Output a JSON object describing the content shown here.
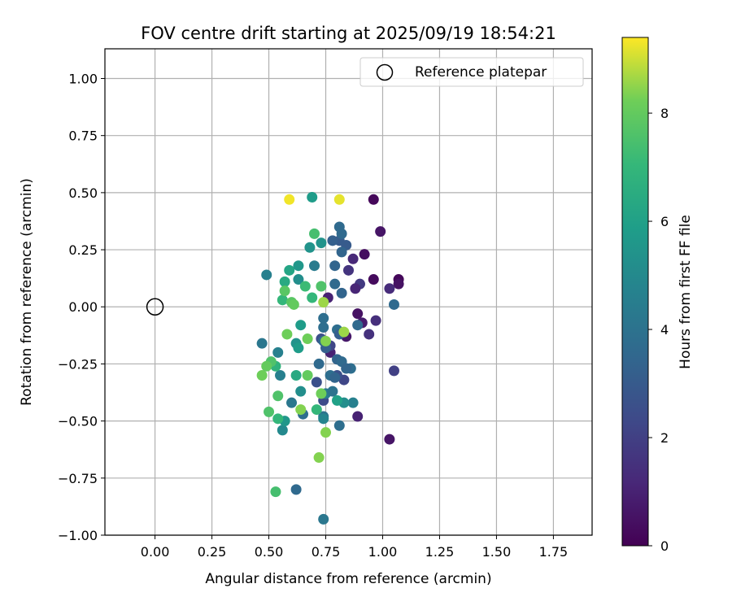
{
  "chart_data": {
    "type": "scatter",
    "title": "FOV centre drift starting at 2025/09/19 18:54:21",
    "xlabel": "Angular distance from reference (arcmin)",
    "ylabel": "Rotation from reference (arcmin)",
    "xlim": [
      -0.22,
      1.92
    ],
    "ylim": [
      -1.0,
      1.13
    ],
    "xticks": [
      0.0,
      0.25,
      0.5,
      0.75,
      1.0,
      1.25,
      1.5,
      1.75
    ],
    "xtick_labels": [
      "0.00",
      "0.25",
      "0.50",
      "0.75",
      "1.00",
      "1.25",
      "1.50",
      "1.75"
    ],
    "yticks": [
      -1.0,
      -0.75,
      -0.5,
      -0.25,
      0.0,
      0.25,
      0.5,
      0.75,
      1.0
    ],
    "ytick_labels": [
      "−1.00",
      "−0.75",
      "−0.50",
      "−0.25",
      "0.00",
      "0.25",
      "0.50",
      "0.75",
      "1.00"
    ],
    "grid": true,
    "legend": {
      "position": "top-right",
      "entries": [
        "Reference platepar"
      ]
    },
    "reference_point": {
      "x": 0.0,
      "y": 0.0,
      "label": "Reference platepar"
    },
    "colorbar": {
      "label": "Hours from first FF file",
      "colormap": "viridis",
      "range": [
        0,
        9.4
      ],
      "ticks": [
        0,
        2,
        4,
        6,
        8
      ],
      "tick_labels": [
        "0",
        "2",
        "4",
        "6",
        "8"
      ]
    },
    "points": [
      {
        "x": 0.96,
        "y": 0.47,
        "h": 0.2
      },
      {
        "x": 0.99,
        "y": 0.33,
        "h": 0.6
      },
      {
        "x": 0.92,
        "y": 0.23,
        "h": 0.4
      },
      {
        "x": 0.87,
        "y": 0.21,
        "h": 1.2
      },
      {
        "x": 0.85,
        "y": 0.16,
        "h": 1.6
      },
      {
        "x": 0.96,
        "y": 0.12,
        "h": 0.3
      },
      {
        "x": 0.9,
        "y": 0.1,
        "h": 1.8
      },
      {
        "x": 0.88,
        "y": 0.08,
        "h": 1.1
      },
      {
        "x": 1.07,
        "y": 0.12,
        "h": 0.2
      },
      {
        "x": 1.07,
        "y": 0.1,
        "h": 0.5
      },
      {
        "x": 1.03,
        "y": 0.08,
        "h": 1.3
      },
      {
        "x": 0.76,
        "y": 0.04,
        "h": 1.0
      },
      {
        "x": 0.89,
        "y": -0.03,
        "h": 0.5
      },
      {
        "x": 0.91,
        "y": -0.07,
        "h": 0.8
      },
      {
        "x": 0.97,
        "y": -0.06,
        "h": 1.4
      },
      {
        "x": 0.94,
        "y": -0.12,
        "h": 1.5
      },
      {
        "x": 0.84,
        "y": -0.13,
        "h": 0.7
      },
      {
        "x": 0.77,
        "y": -0.2,
        "h": 1.0
      },
      {
        "x": 1.03,
        "y": -0.58,
        "h": 0.6
      },
      {
        "x": 1.05,
        "y": -0.28,
        "h": 2.0
      },
      {
        "x": 0.89,
        "y": -0.48,
        "h": 1.0
      },
      {
        "x": 0.83,
        "y": -0.32,
        "h": 2.2
      },
      {
        "x": 0.74,
        "y": -0.41,
        "h": 2.4
      },
      {
        "x": 0.77,
        "y": -0.17,
        "h": 2.2
      },
      {
        "x": 0.73,
        "y": -0.14,
        "h": 2.6
      },
      {
        "x": 0.71,
        "y": -0.33,
        "h": 2.6
      },
      {
        "x": 0.8,
        "y": -0.3,
        "h": 2.6
      },
      {
        "x": 0.81,
        "y": 0.29,
        "h": 3.0
      },
      {
        "x": 0.78,
        "y": 0.29,
        "h": 3.2
      },
      {
        "x": 0.84,
        "y": 0.27,
        "h": 3.0
      },
      {
        "x": 0.81,
        "y": 0.35,
        "h": 3.6
      },
      {
        "x": 0.82,
        "y": 0.32,
        "h": 3.6
      },
      {
        "x": 0.82,
        "y": 0.24,
        "h": 3.4
      },
      {
        "x": 0.79,
        "y": 0.18,
        "h": 3.4
      },
      {
        "x": 0.79,
        "y": 0.1,
        "h": 3.6
      },
      {
        "x": 0.82,
        "y": 0.06,
        "h": 3.4
      },
      {
        "x": 1.05,
        "y": 0.01,
        "h": 3.6
      },
      {
        "x": 0.89,
        "y": -0.08,
        "h": 3.6
      },
      {
        "x": 0.8,
        "y": -0.1,
        "h": 3.8
      },
      {
        "x": 0.81,
        "y": -0.12,
        "h": 3.2
      },
      {
        "x": 0.74,
        "y": -0.05,
        "h": 3.8
      },
      {
        "x": 0.74,
        "y": -0.09,
        "h": 3.8
      },
      {
        "x": 0.74,
        "y": -0.15,
        "h": 3.6
      },
      {
        "x": 0.75,
        "y": -0.18,
        "h": 3.2
      },
      {
        "x": 0.8,
        "y": -0.23,
        "h": 3.4
      },
      {
        "x": 0.82,
        "y": -0.24,
        "h": 3.6
      },
      {
        "x": 0.86,
        "y": -0.27,
        "h": 3.8
      },
      {
        "x": 0.77,
        "y": -0.3,
        "h": 3.8
      },
      {
        "x": 0.72,
        "y": -0.25,
        "h": 3.6
      },
      {
        "x": 0.84,
        "y": -0.27,
        "h": 3.4
      },
      {
        "x": 0.79,
        "y": -0.31,
        "h": 3.4
      },
      {
        "x": 0.75,
        "y": -0.38,
        "h": 4.4
      },
      {
        "x": 0.78,
        "y": -0.37,
        "h": 4.0
      },
      {
        "x": 0.74,
        "y": -0.48,
        "h": 4.0
      },
      {
        "x": 0.81,
        "y": -0.52,
        "h": 3.8
      },
      {
        "x": 0.65,
        "y": -0.47,
        "h": 3.8
      },
      {
        "x": 0.62,
        "y": -0.8,
        "h": 3.6
      },
      {
        "x": 0.74,
        "y": -0.93,
        "h": 4.2
      },
      {
        "x": 0.7,
        "y": 0.18,
        "h": 4.4
      },
      {
        "x": 0.49,
        "y": 0.14,
        "h": 4.6
      },
      {
        "x": 0.47,
        "y": -0.16,
        "h": 4.2
      },
      {
        "x": 0.54,
        "y": -0.2,
        "h": 4.6
      },
      {
        "x": 0.55,
        "y": -0.3,
        "h": 4.6
      },
      {
        "x": 0.6,
        "y": -0.42,
        "h": 4.2
      },
      {
        "x": 0.87,
        "y": -0.42,
        "h": 4.6
      },
      {
        "x": 0.83,
        "y": -0.42,
        "h": 5.2
      },
      {
        "x": 0.74,
        "y": -0.49,
        "h": 4.8
      },
      {
        "x": 0.56,
        "y": -0.54,
        "h": 5.0
      },
      {
        "x": 0.64,
        "y": -0.37,
        "h": 5.2
      },
      {
        "x": 0.63,
        "y": 0.12,
        "h": 5.2
      },
      {
        "x": 0.68,
        "y": 0.26,
        "h": 5.4
      },
      {
        "x": 0.73,
        "y": 0.28,
        "h": 5.4
      },
      {
        "x": 0.63,
        "y": 0.18,
        "h": 5.6
      },
      {
        "x": 0.69,
        "y": 0.48,
        "h": 5.8
      },
      {
        "x": 0.62,
        "y": -0.16,
        "h": 5.4
      },
      {
        "x": 0.57,
        "y": -0.5,
        "h": 5.6
      },
      {
        "x": 0.64,
        "y": -0.08,
        "h": 5.8
      },
      {
        "x": 0.59,
        "y": 0.16,
        "h": 6.2
      },
      {
        "x": 0.57,
        "y": 0.11,
        "h": 6.4
      },
      {
        "x": 0.63,
        "y": -0.18,
        "h": 5.8
      },
      {
        "x": 0.62,
        "y": -0.3,
        "h": 6.4
      },
      {
        "x": 0.8,
        "y": -0.41,
        "h": 6.0
      },
      {
        "x": 0.53,
        "y": -0.26,
        "h": 6.8
      },
      {
        "x": 0.56,
        "y": 0.03,
        "h": 7.0
      },
      {
        "x": 0.54,
        "y": -0.49,
        "h": 7.0
      },
      {
        "x": 0.69,
        "y": 0.04,
        "h": 7.0
      },
      {
        "x": 0.71,
        "y": -0.45,
        "h": 7.0
      },
      {
        "x": 0.66,
        "y": 0.09,
        "h": 7.2
      },
      {
        "x": 0.7,
        "y": 0.32,
        "h": 7.4
      },
      {
        "x": 0.53,
        "y": -0.81,
        "h": 7.4
      },
      {
        "x": 0.51,
        "y": -0.24,
        "h": 7.6
      },
      {
        "x": 0.5,
        "y": -0.46,
        "h": 7.6
      },
      {
        "x": 0.73,
        "y": 0.09,
        "h": 7.6
      },
      {
        "x": 0.54,
        "y": -0.39,
        "h": 7.6
      },
      {
        "x": 0.57,
        "y": 0.07,
        "h": 7.8
      },
      {
        "x": 0.6,
        "y": 0.02,
        "h": 7.8
      },
      {
        "x": 0.61,
        "y": 0.01,
        "h": 8.0
      },
      {
        "x": 0.49,
        "y": -0.26,
        "h": 8.0
      },
      {
        "x": 0.47,
        "y": -0.3,
        "h": 8.2
      },
      {
        "x": 0.58,
        "y": -0.12,
        "h": 8.2
      },
      {
        "x": 0.67,
        "y": -0.14,
        "h": 8.2
      },
      {
        "x": 0.67,
        "y": -0.3,
        "h": 8.0
      },
      {
        "x": 0.73,
        "y": -0.38,
        "h": 8.2
      },
      {
        "x": 0.64,
        "y": -0.45,
        "h": 8.4
      },
      {
        "x": 0.75,
        "y": -0.55,
        "h": 8.4
      },
      {
        "x": 0.72,
        "y": -0.66,
        "h": 8.4
      },
      {
        "x": 0.74,
        "y": 0.02,
        "h": 8.6
      },
      {
        "x": 0.75,
        "y": -0.15,
        "h": 8.4
      },
      {
        "x": 0.83,
        "y": -0.11,
        "h": 8.6
      },
      {
        "x": 0.81,
        "y": 0.47,
        "h": 9.2
      },
      {
        "x": 0.59,
        "y": 0.47,
        "h": 9.3
      }
    ]
  }
}
